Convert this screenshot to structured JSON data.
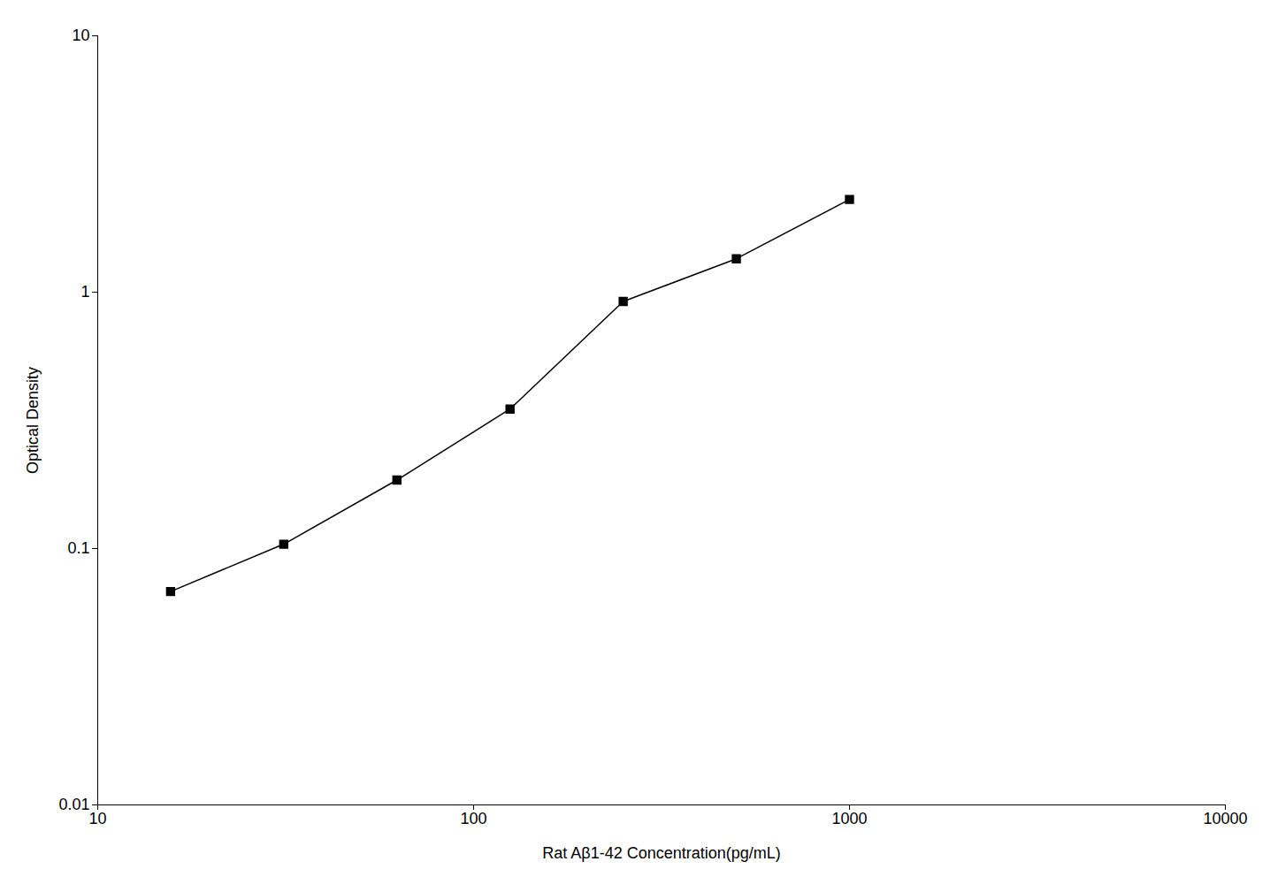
{
  "chart_data": {
    "type": "line",
    "x": [
      15.625,
      31.25,
      62.5,
      125,
      250,
      500,
      1000
    ],
    "values": [
      0.068,
      0.104,
      0.185,
      0.35,
      0.92,
      1.35,
      2.3
    ],
    "color": "#000000",
    "marker": "square",
    "log": true,
    "xlim": [
      10,
      10000
    ],
    "ylim": [
      0.01,
      10
    ],
    "xticks": [
      10,
      100,
      1000,
      10000
    ],
    "yticks": [
      0.01,
      0.1,
      1,
      10
    ],
    "xlabel": "Rat Aβ1-42 Concentration(pg/mL)",
    "ylabel": "Optical Density",
    "grid": false
  }
}
